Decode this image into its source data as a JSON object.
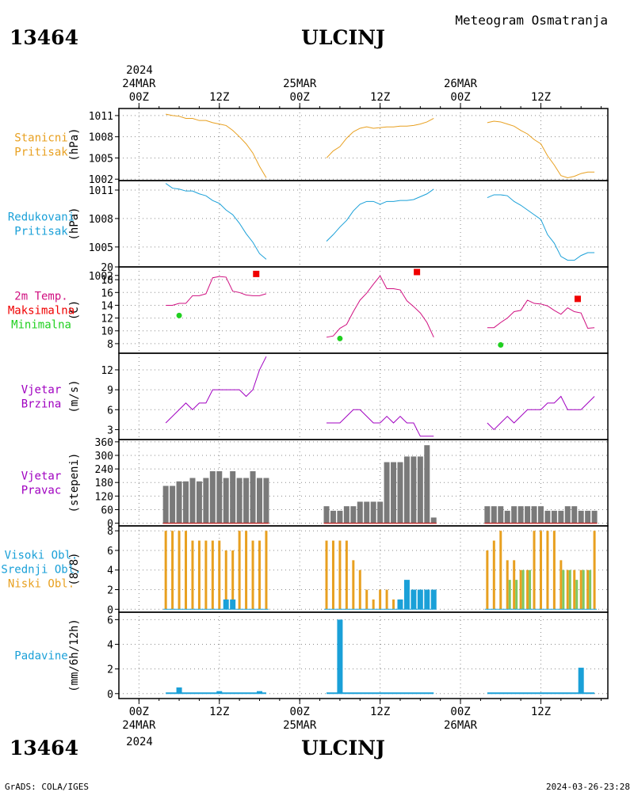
{
  "header": {
    "station_id": "13464",
    "station_name": "ULCINJ",
    "subtitle": "Meteogram Osmatranja"
  },
  "footer": {
    "credit": "GrADS: COLA/IGES",
    "timestamp": "2024-03-26-23:28"
  },
  "time_axis": {
    "top_year": "2024",
    "bottom_year": "2024",
    "ticks": [
      {
        "hour": 0,
        "line1": "24MAR",
        "line2": "00Z"
      },
      {
        "hour": 12,
        "line1": "",
        "line2": "12Z"
      },
      {
        "hour": 24,
        "line1": "25MAR",
        "line2": "00Z"
      },
      {
        "hour": 36,
        "line1": "",
        "line2": "12Z"
      },
      {
        "hour": 48,
        "line1": "26MAR",
        "line2": "00Z"
      },
      {
        "hour": 60,
        "line1": "",
        "line2": "12Z"
      }
    ],
    "x_range_hours": [
      -3,
      70
    ],
    "minor_step_hours": 3
  },
  "colors": {
    "pressure": "#e8a020",
    "reduced_pressure": "#1aa0d8",
    "temperature": "#d01080",
    "max_temp": "#f00000",
    "min_temp": "#20d020",
    "wind": "#a000c0",
    "direction_bar": "#7a7a7a",
    "high_cloud": "#1aa0d8",
    "mid_cloud": "#80c860",
    "low_cloud": "#e8a020",
    "precip": "#1aa0d8",
    "direction_line": "#c03030"
  },
  "chart_data": [
    {
      "type": "line",
      "panel_labels": [
        "Stanicni",
        "Pritisak"
      ],
      "ylabel": "(hPa)",
      "yticks": [
        1002,
        1005,
        1008,
        1011
      ],
      "ylim": [
        1001.8,
        1012.0
      ],
      "series": [
        {
          "x": [
            4,
            5,
            6,
            7,
            8,
            9,
            10,
            11,
            12,
            13,
            14,
            15,
            16,
            17,
            18,
            19
          ],
          "y": [
            1011.2,
            1011.0,
            1010.9,
            1010.6,
            1010.6,
            1010.3,
            1010.3,
            1010.0,
            1009.8,
            1009.6,
            1008.9,
            1008.0,
            1007.0,
            1005.7,
            1003.8,
            1002.2
          ]
        },
        {
          "x": [
            28,
            29,
            30,
            31,
            32,
            33,
            34,
            35,
            36,
            37,
            38,
            39,
            40,
            41,
            42,
            43,
            44
          ],
          "y": [
            1005.0,
            1006.0,
            1006.6,
            1007.8,
            1008.7,
            1009.2,
            1009.4,
            1009.2,
            1009.3,
            1009.4,
            1009.4,
            1009.5,
            1009.5,
            1009.6,
            1009.8,
            1010.1,
            1010.6
          ]
        },
        {
          "x": [
            52,
            53,
            54,
            55,
            56,
            57,
            58,
            59,
            60,
            61,
            62,
            63,
            64,
            65,
            66,
            67,
            68
          ],
          "y": [
            1010.0,
            1010.2,
            1010.1,
            1009.8,
            1009.5,
            1008.9,
            1008.4,
            1007.6,
            1007.0,
            1005.3,
            1004.0,
            1002.5,
            1002.2,
            1002.4,
            1002.8,
            1003.0,
            1003.0
          ]
        }
      ]
    },
    {
      "type": "line",
      "panel_labels": [
        "Redukovani",
        "Pritisak"
      ],
      "ylabel": "(hPa)",
      "yticks": [
        1002,
        1005,
        1008,
        1011
      ],
      "ylim": [
        1002.9,
        1012.0
      ],
      "series": [
        {
          "x": [
            4,
            5,
            6,
            7,
            8,
            9,
            10,
            11,
            12,
            13,
            14,
            15,
            16,
            17,
            18,
            19
          ],
          "y": [
            1011.7,
            1011.2,
            1011.1,
            1010.9,
            1010.9,
            1010.6,
            1010.4,
            1009.9,
            1009.6,
            1008.9,
            1008.4,
            1007.5,
            1006.4,
            1005.5,
            1004.3,
            1003.7
          ]
        },
        {
          "x": [
            28,
            29,
            30,
            31,
            32,
            33,
            34,
            35,
            36,
            37,
            38,
            39,
            40,
            41,
            42,
            43,
            44
          ],
          "y": [
            1005.6,
            1006.3,
            1007.1,
            1007.8,
            1008.8,
            1009.5,
            1009.8,
            1009.8,
            1009.5,
            1009.8,
            1009.8,
            1009.9,
            1009.9,
            1010.0,
            1010.3,
            1010.6,
            1011.1
          ]
        },
        {
          "x": [
            52,
            53,
            54,
            55,
            56,
            57,
            58,
            59,
            60,
            61,
            62,
            63,
            64,
            65,
            66,
            67,
            68
          ],
          "y": [
            1010.2,
            1010.5,
            1010.5,
            1010.4,
            1009.8,
            1009.4,
            1008.9,
            1008.4,
            1007.9,
            1006.3,
            1005.4,
            1004.0,
            1003.6,
            1003.6,
            1004.1,
            1004.4,
            1004.4
          ]
        }
      ]
    },
    {
      "type": "line",
      "panel_labels": [
        "2m Temp.",
        "Maksimalna",
        "Minimalna"
      ],
      "ylabel": "(C)",
      "yticks": [
        8,
        10,
        12,
        14,
        16,
        18,
        20
      ],
      "ylim": [
        6.5,
        20.0
      ],
      "series": [
        {
          "x": [
            4,
            5,
            6,
            7,
            8,
            9,
            10,
            11,
            12,
            13,
            14,
            15,
            16,
            17,
            18,
            19
          ],
          "y": [
            14.0,
            14.0,
            14.3,
            14.3,
            15.5,
            15.5,
            15.8,
            18.3,
            18.5,
            18.4,
            16.2,
            16.0,
            15.6,
            15.5,
            15.5,
            15.8
          ]
        },
        {
          "x": [
            28,
            29,
            30,
            31,
            32,
            33,
            34,
            35,
            36,
            37,
            38,
            39,
            40,
            41,
            42,
            43,
            44
          ],
          "y": [
            9.0,
            9.2,
            10.4,
            11.0,
            13.0,
            14.8,
            15.9,
            17.3,
            18.6,
            16.6,
            16.6,
            16.4,
            14.7,
            13.8,
            12.8,
            11.3,
            9.0
          ]
        },
        {
          "x": [
            52,
            53,
            54,
            55,
            56,
            57,
            58,
            59,
            60,
            61,
            62,
            63,
            64,
            65,
            66,
            67,
            68
          ],
          "y": [
            10.5,
            10.5,
            11.3,
            12.0,
            13.0,
            13.2,
            14.8,
            14.3,
            14.2,
            13.9,
            13.2,
            12.6,
            13.6,
            13.0,
            12.8,
            10.4,
            10.5
          ]
        }
      ],
      "max_points": [
        {
          "x": 17.5,
          "y": 18.9
        },
        {
          "x": 41.5,
          "y": 19.2
        },
        {
          "x": 65.5,
          "y": 15.0
        }
      ],
      "min_points": [
        {
          "x": 6,
          "y": 12.4
        },
        {
          "x": 30,
          "y": 8.8
        },
        {
          "x": 54,
          "y": 7.8
        }
      ]
    },
    {
      "type": "line",
      "panel_labels": [
        "Vjetar",
        "Brzina"
      ],
      "ylabel": "(m/s)",
      "yticks": [
        3,
        6,
        9,
        12
      ],
      "ylim": [
        1.5,
        14.5
      ],
      "series": [
        {
          "x": [
            4,
            5,
            6,
            7,
            8,
            9,
            10,
            11,
            12,
            13,
            14,
            15,
            16,
            17,
            18,
            19
          ],
          "y": [
            4,
            5,
            6,
            7,
            6,
            7,
            7,
            9,
            9,
            9,
            9,
            9,
            8,
            9,
            12,
            14
          ]
        },
        {
          "x": [
            28,
            29,
            30,
            31,
            32,
            33,
            34,
            35,
            36,
            37,
            38,
            39,
            40,
            41,
            42,
            43,
            44
          ],
          "y": [
            4,
            4,
            4,
            5,
            6,
            6,
            5,
            4,
            4,
            5,
            4,
            5,
            4,
            4,
            2,
            2,
            2
          ]
        },
        {
          "x": [
            52,
            53,
            54,
            55,
            56,
            57,
            58,
            59,
            60,
            61,
            62,
            63,
            64,
            65,
            66,
            67,
            68
          ],
          "y": [
            4,
            3,
            4,
            5,
            4,
            5,
            6,
            6,
            6,
            7,
            7,
            8,
            6,
            6,
            6,
            7,
            8
          ]
        }
      ]
    },
    {
      "type": "bar",
      "panel_labels": [
        "Vjetar",
        "Pravac"
      ],
      "ylabel": "(stepeni)",
      "yticks": [
        0,
        60,
        120,
        180,
        240,
        300,
        360
      ],
      "ylim": [
        -12,
        370
      ],
      "series": [
        {
          "x": [
            4,
            5,
            6,
            7,
            8,
            9,
            10,
            11,
            12,
            13,
            14,
            15,
            16,
            17,
            18,
            19
          ],
          "y": [
            165,
            165,
            185,
            185,
            200,
            185,
            200,
            230,
            230,
            200,
            230,
            200,
            200,
            230,
            200,
            200
          ]
        },
        {
          "x": [
            28,
            29,
            30,
            31,
            32,
            33,
            34,
            35,
            36,
            37,
            38,
            39,
            40,
            41,
            42,
            43,
            44
          ],
          "y": [
            75,
            55,
            55,
            75,
            75,
            95,
            95,
            95,
            95,
            270,
            270,
            270,
            295,
            295,
            295,
            345,
            25
          ]
        },
        {
          "x": [
            52,
            53,
            54,
            55,
            56,
            57,
            58,
            59,
            60,
            61,
            62,
            63,
            64,
            65,
            66,
            67,
            68
          ],
          "y": [
            75,
            75,
            75,
            55,
            75,
            75,
            75,
            75,
            75,
            55,
            55,
            55,
            75,
            75,
            55,
            55,
            55
          ]
        }
      ]
    },
    {
      "type": "bar",
      "panel_labels": [
        "Visoki Obl.",
        "Srednji Obl.",
        "Niski Obl."
      ],
      "ylabel": "(8/8)",
      "yticks": [
        0,
        2,
        4,
        6,
        8
      ],
      "ylim": [
        -0.3,
        8.5
      ],
      "series": [
        {
          "name": "Niski Obl.",
          "x": [
            4,
            5,
            6,
            7,
            8,
            9,
            10,
            11,
            12,
            13,
            14,
            15,
            16,
            17,
            18,
            19,
            28,
            29,
            30,
            31,
            32,
            33,
            34,
            35,
            36,
            37,
            38,
            39,
            40,
            41,
            42,
            43,
            44,
            52,
            53,
            54,
            55,
            56,
            57,
            58,
            59,
            60,
            61,
            62,
            63,
            64,
            65,
            66,
            67,
            68
          ],
          "y": [
            8,
            8,
            8,
            8,
            7,
            7,
            7,
            7,
            7,
            6,
            6,
            8,
            8,
            7,
            7,
            8,
            7,
            7,
            7,
            7,
            5,
            4,
            2,
            1,
            2,
            2,
            1,
            1,
            1,
            1,
            1,
            1,
            1,
            6,
            7,
            8,
            5,
            5,
            4,
            4,
            8,
            8,
            8,
            8,
            5,
            4,
            4,
            4,
            4,
            8
          ]
        },
        {
          "name": "Srednji Obl.",
          "x": [
            55,
            56,
            57,
            58,
            63,
            64,
            65,
            66,
            67
          ],
          "y": [
            3,
            3,
            4,
            4,
            4,
            4,
            3,
            4,
            4
          ]
        },
        {
          "name": "Visoki Obl.",
          "x": [
            13,
            14,
            39,
            40,
            41,
            42,
            43,
            44
          ],
          "y": [
            1,
            1,
            1,
            3,
            2,
            2,
            2,
            2
          ]
        }
      ]
    },
    {
      "type": "bar",
      "panel_labels": [
        "Padavine"
      ],
      "ylabel": "(mm/6h/12h)",
      "yticks": [
        0,
        2,
        4,
        6
      ],
      "ylim": [
        -0.4,
        6.6
      ],
      "series": [
        {
          "x": [
            6,
            12,
            18,
            30,
            66
          ],
          "y": [
            0.5,
            0.2,
            0.2,
            6.0,
            2.1
          ]
        }
      ]
    }
  ]
}
